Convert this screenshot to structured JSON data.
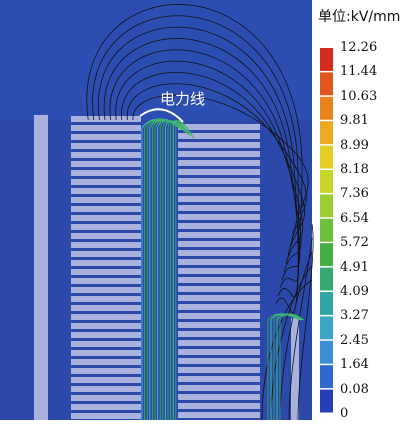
{
  "title_unit": "单位:kV/mm",
  "field_line_label": "电力线",
  "colorbar": {
    "ticks": [
      "12.26",
      "11.44",
      "10.63",
      "9.81",
      "8.99",
      "8.18",
      "7.36",
      "6.54",
      "5.72",
      "4.91",
      "4.09",
      "3.27",
      "2.45",
      "1.64",
      "0.08",
      "0"
    ],
    "colors": [
      "#d62a1e",
      "#e0561c",
      "#e8831c",
      "#ecab1e",
      "#e6cf24",
      "#c8d62c",
      "#9ccb34",
      "#6cbf3a",
      "#44b044",
      "#36a872",
      "#30a6a2",
      "#3aa6c4",
      "#3a8ed6",
      "#2f67cc",
      "#2440b4"
    ]
  },
  "colors": {
    "background_field": "#2a49ab",
    "winding_bar": "#a8b2dc",
    "field_line": "#111111",
    "concentrated_line": "#3fae3f"
  }
}
